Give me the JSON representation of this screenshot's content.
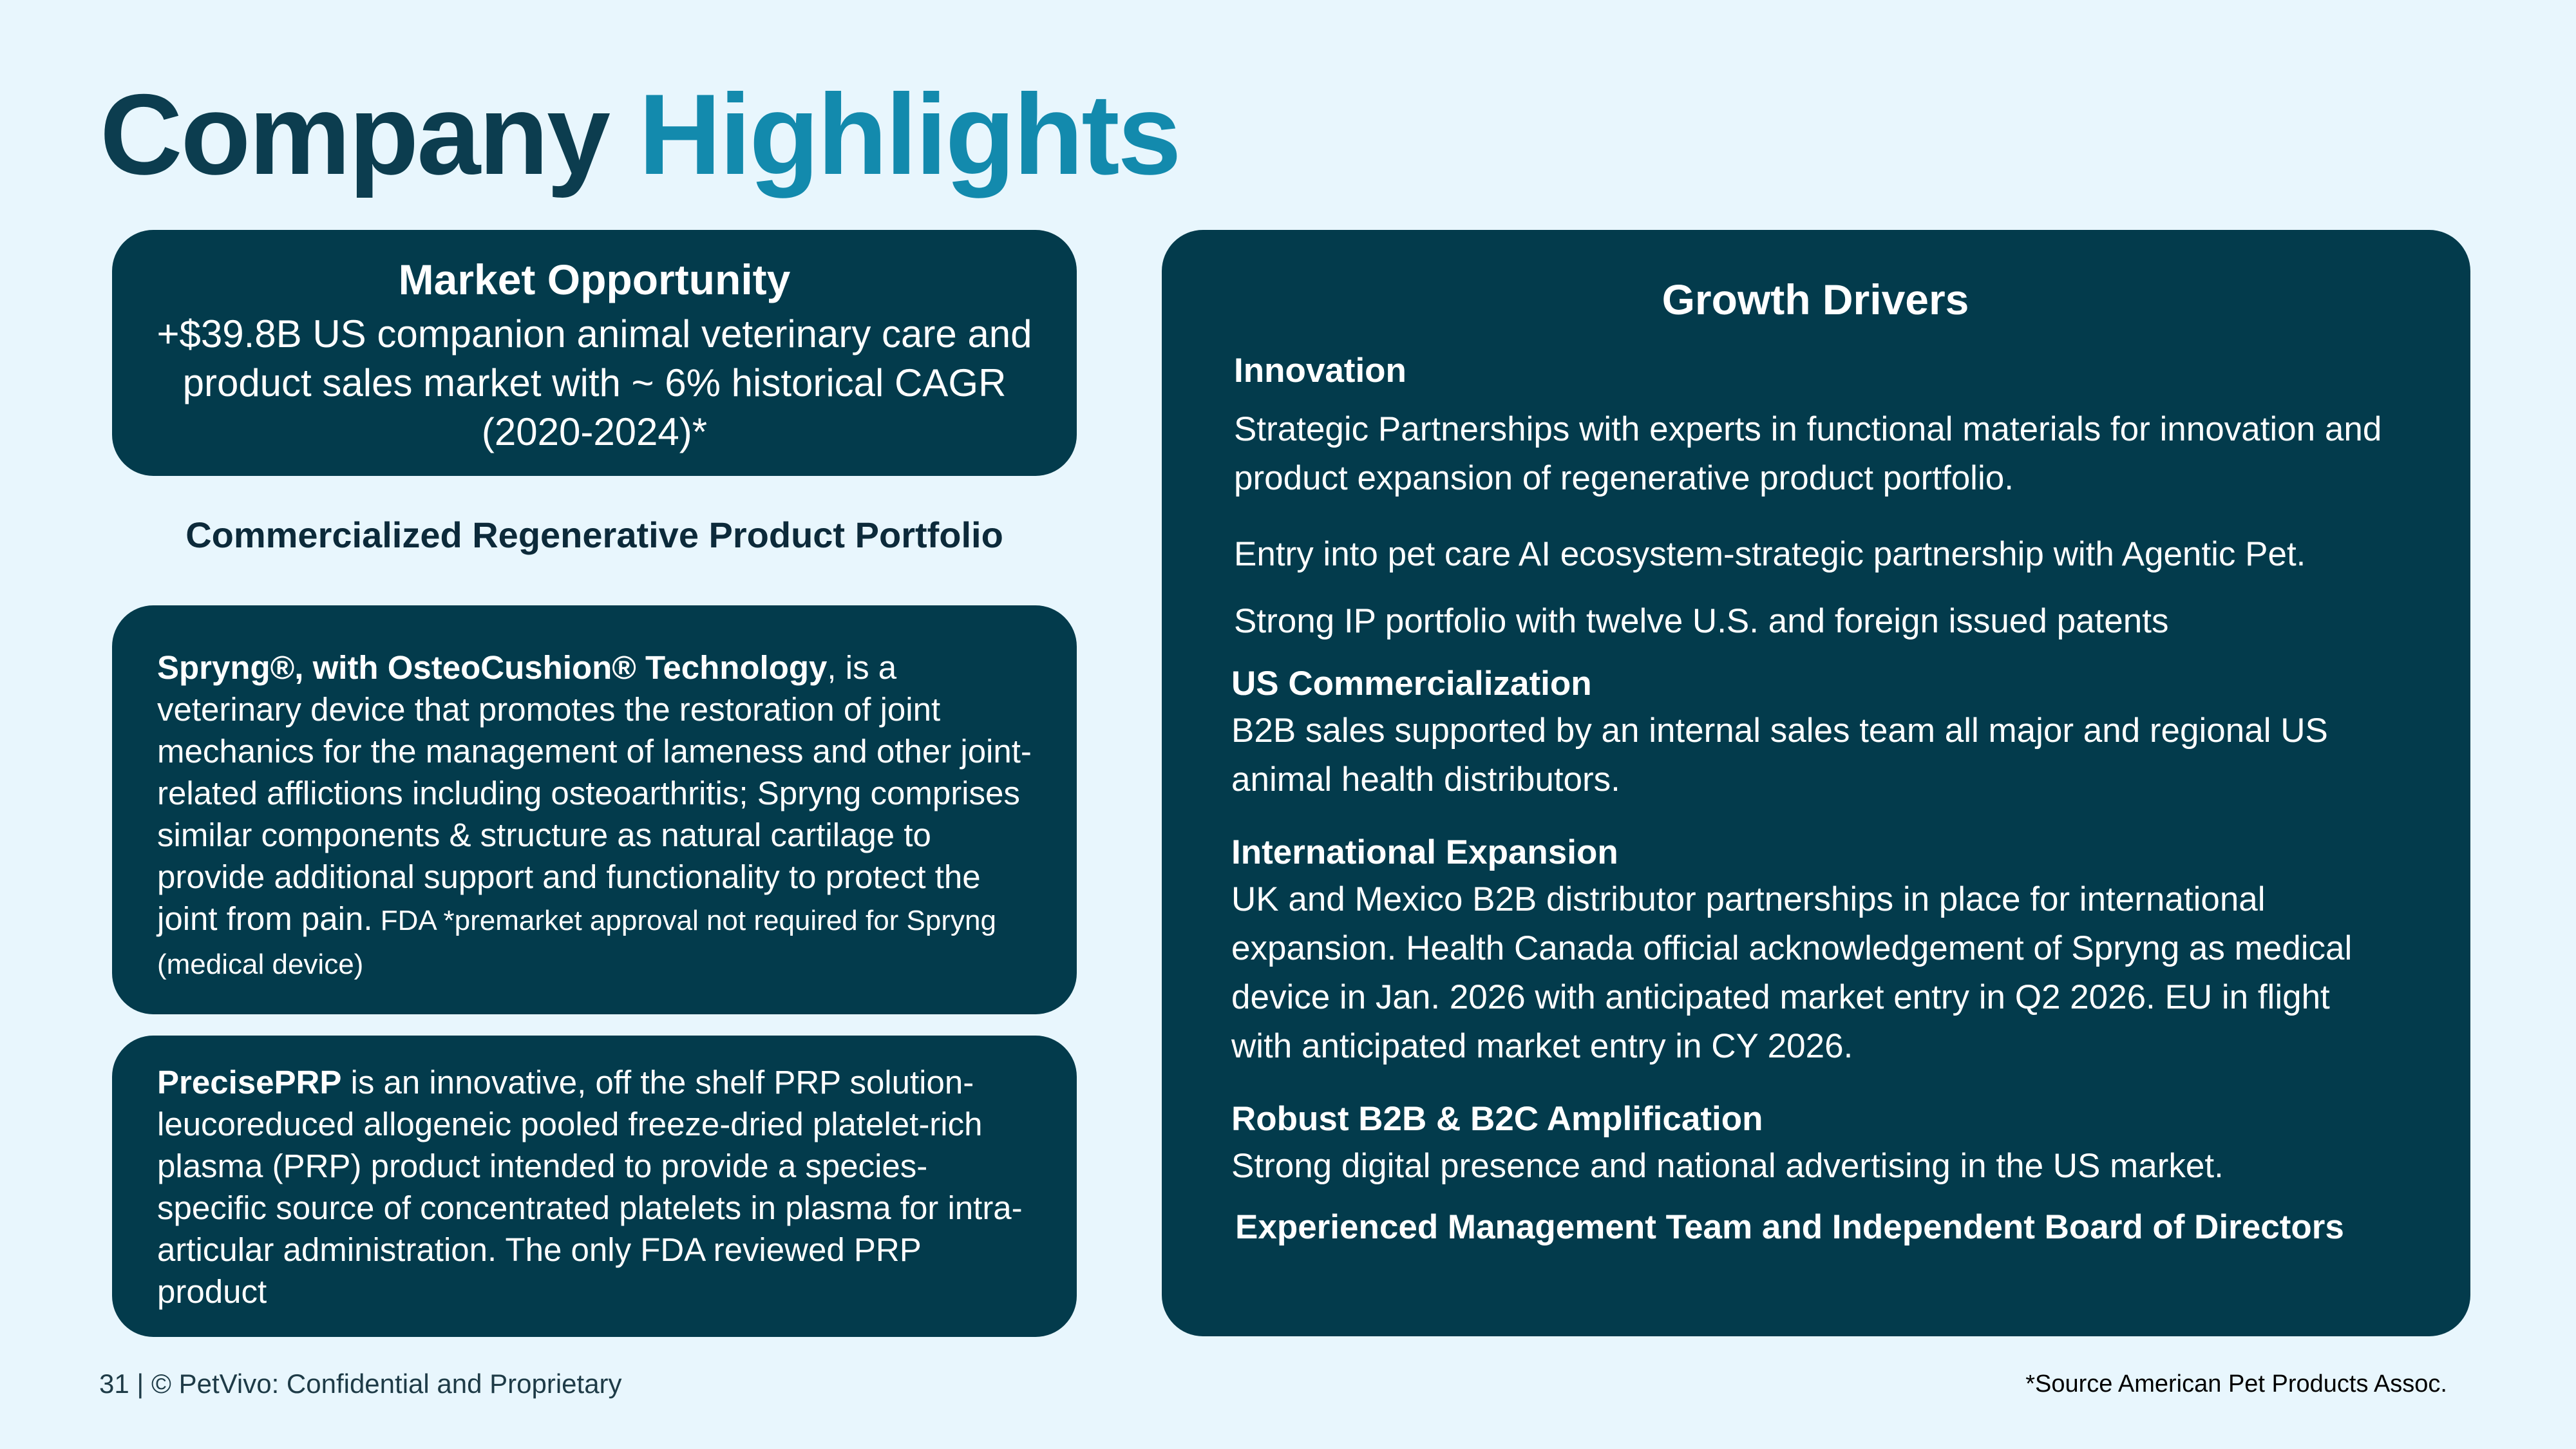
{
  "title": {
    "word1": "Company",
    "word2": "Highlights"
  },
  "market_opportunity": {
    "heading": "Market Opportunity",
    "text": "+$39.8B US companion animal veterinary care and product sales market with ~ 6% historical CAGR (2020-2024)*"
  },
  "portfolio_heading": "Commercialized Regenerative Product Portfolio",
  "spryng": {
    "name": "Spryng®, with OsteoCushion® Technology",
    "description": ", is a veterinary device that promotes the restoration of joint mechanics for the management of lameness and other joint-related afflictions including osteoarthritis; Spryng comprises similar components & structure as natural cartilage to provide additional support and functionality to protect the joint from pain.",
    "note": " FDA *premarket approval not required for Spryng (medical device)"
  },
  "preciseprp": {
    "name": "PrecisePRP",
    "description": " is an innovative, off the shelf PRP solution-leucoreduced allogeneic pooled freeze-dried platelet-rich plasma (PRP) product intended to provide a species-specific source of concentrated platelets in plasma for intra-articular administration. The only FDA reviewed PRP product"
  },
  "growth_drivers": {
    "heading": "Growth Drivers",
    "innovation_heading": "Innovation",
    "innovation_items": [
      "Strategic Partnerships with experts in functional materials for innovation and product expansion of regenerative product portfolio.",
      "Entry into pet care AI ecosystem-strategic partnership with Agentic Pet.",
      "Strong IP portfolio with twelve U.S. and foreign issued patents"
    ],
    "us_heading": "US Commercialization",
    "us_text": "B2B sales supported by an internal sales team all major and regional US animal health distributors.",
    "intl_heading": "International Expansion",
    "intl_text": "UK and Mexico B2B distributor partnerships in place for international expansion.  Health Canada official acknowledgement of Spryng as medical device in Jan. 2026 with anticipated market entry in Q2 2026. EU in flight with anticipated market entry in CY 2026.",
    "b2b_heading": "Robust B2B & B2C Amplification",
    "b2b_text": "Strong digital presence and national advertising in the US market.",
    "mgmt_heading": "Experienced Management Team and Independent Board of Directors"
  },
  "footer": "31 | © PetVivo: Confidential and Proprietary",
  "source": "*Source American Pet Products Assoc."
}
